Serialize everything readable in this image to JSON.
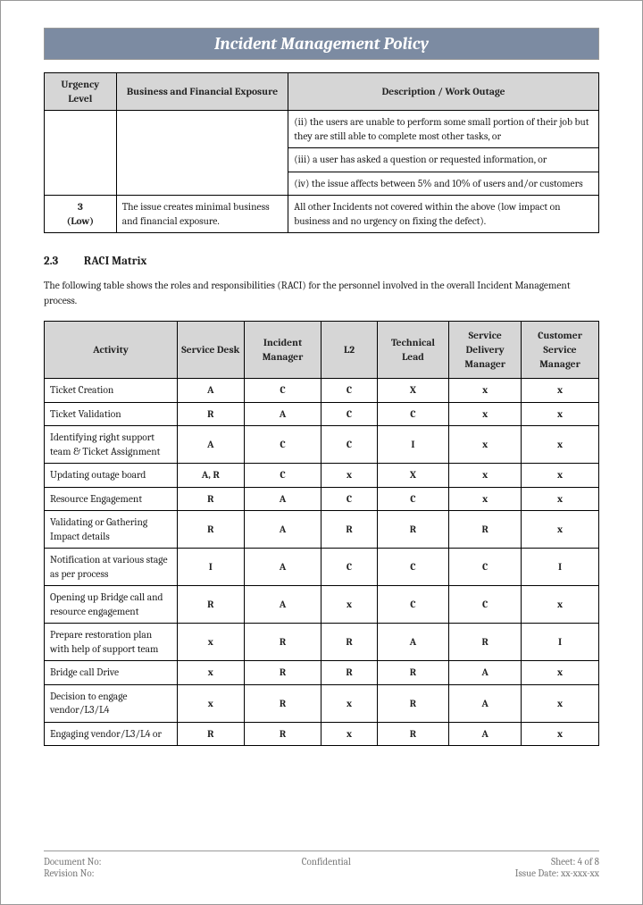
{
  "title": "Incident Management Policy",
  "urgency_table": {
    "headers": [
      "Urgency Level",
      "Business and Financial Exposure",
      "Description / Work Outage"
    ],
    "continuation_rows": [
      "(ii)   the users are unable to perform some small portion of their job but they are still able to complete most other tasks, or",
      "(iii)  a user has asked a question or requested information, or",
      "(iv)   the issue affects between 5% and 10% of users and/or customers"
    ],
    "row3": {
      "level": "3",
      "level_label": "(Low)",
      "exposure": "The issue creates minimal business and financial exposure.",
      "description": "All other Incidents not covered within the above (low impact on business and no urgency on fixing the defect)."
    }
  },
  "section": {
    "number": "2.3",
    "title": "RACI Matrix",
    "intro": "The following table shows the roles and responsibilities (RACI) for the personnel involved in the overall Incident Management process."
  },
  "raci": {
    "headers": [
      "Activity",
      "Service Desk",
      "Incident Manager",
      "L2",
      "Technical Lead",
      "Service Delivery Manager",
      "Customer Service Manager"
    ],
    "rows": [
      {
        "activity": "Ticket Creation",
        "cells": [
          "A",
          "C",
          "C",
          "X",
          "x",
          "x"
        ]
      },
      {
        "activity": "Ticket Validation",
        "cells": [
          "R",
          "A",
          "C",
          "C",
          "x",
          "x"
        ]
      },
      {
        "activity": "Identifying right support team & Ticket Assignment",
        "cells": [
          "A",
          "C",
          "C",
          "I",
          "x",
          "x"
        ]
      },
      {
        "activity": "Updating outage board",
        "cells": [
          "A, R",
          "C",
          "x",
          "X",
          "x",
          "x"
        ]
      },
      {
        "activity": "Resource Engagement",
        "cells": [
          "R",
          "A",
          "C",
          "C",
          "x",
          "x"
        ]
      },
      {
        "activity": "Validating or Gathering Impact details",
        "cells": [
          "R",
          "A",
          "R",
          "R",
          "R",
          "x"
        ]
      },
      {
        "activity": "Notification at various stage as per process",
        "cells": [
          "I",
          "A",
          "C",
          "C",
          "C",
          "I"
        ]
      },
      {
        "activity": "Opening up Bridge call and resource engagement",
        "cells": [
          "R",
          "A",
          "x",
          "C",
          "C",
          "x"
        ]
      },
      {
        "activity": "Prepare restoration plan with help of support team",
        "cells": [
          "x",
          "R",
          "R",
          "A",
          "R",
          "I"
        ]
      },
      {
        "activity": "Bridge call Drive",
        "cells": [
          "x",
          "R",
          "R",
          "R",
          "A",
          "x"
        ]
      },
      {
        "activity": "Decision to engage vendor/L3/L4",
        "cells": [
          "x",
          "R",
          "x",
          "R",
          "A",
          "x"
        ]
      },
      {
        "activity": "Engaging vendor/L3/L4 or",
        "cells": [
          "R",
          "R",
          "x",
          "R",
          "A",
          "x"
        ]
      }
    ]
  },
  "footer": {
    "doc_no_label": "Document No:",
    "rev_no_label": "Revision No:",
    "confidential": "Confidential",
    "sheet": "Sheet: 4 of 8",
    "issue": "Issue Date: xx-xxx-xx"
  },
  "layout": {
    "urgency_col_widths": [
      "13%",
      "31%",
      "56%"
    ],
    "raci_col_widths": [
      "24%",
      "12%",
      "14%",
      "10%",
      "13%",
      "13%",
      "14%"
    ]
  }
}
